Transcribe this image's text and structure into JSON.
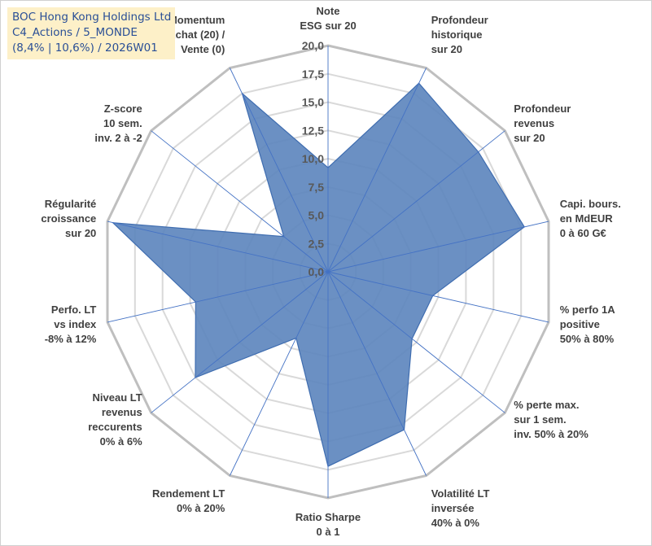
{
  "title": {
    "line1": "BOC Hong Kong Holdings Ltd",
    "line2": "C4_Actions / 5_MONDE",
    "line3": "(8,4% | 10,6%) / 2026W01"
  },
  "chart_data": {
    "type": "radar",
    "rmin": 0,
    "rmax": 20,
    "tick_step": 2.5,
    "ticks": [
      "0,0",
      "2,5",
      "5,0",
      "7,5",
      "10,0",
      "12,5",
      "15,0",
      "17,5",
      "20,0"
    ],
    "gridlines": true,
    "legend": "none",
    "series": [
      {
        "name": "BOC Hong Kong Holdings Ltd",
        "values": [
          9.2,
          18.5,
          17.0,
          17.8,
          9.5,
          9.5,
          15.5,
          17.2,
          6.5,
          15.0,
          12.0,
          19.5,
          5.0,
          17.5
        ],
        "fill": "#5b84bd",
        "stroke": "#3f6db0"
      }
    ],
    "axes": [
      {
        "lines": [
          "Note",
          "ESG sur 20"
        ]
      },
      {
        "lines": [
          "Profondeur",
          "historique",
          "sur 20"
        ]
      },
      {
        "lines": [
          "Profondeur",
          "revenus",
          "sur 20"
        ]
      },
      {
        "lines": [
          "Capi. bours.",
          "en MdEUR",
          "0 à 60 G€"
        ]
      },
      {
        "lines": [
          "% perfo 1A",
          "positive",
          "50% à 80%"
        ]
      },
      {
        "lines": [
          "% perte max.",
          "sur 1 sem.",
          "inv. 50% à 20%"
        ]
      },
      {
        "lines": [
          "Volatilité LT",
          "inversée",
          "40% à 0%"
        ]
      },
      {
        "lines": [
          "Ratio Sharpe",
          "0 à 1"
        ]
      },
      {
        "lines": [
          "Rendement LT",
          "0% à 20%"
        ]
      },
      {
        "lines": [
          "Niveau LT",
          "revenus",
          "reccurents",
          "0% à 6%"
        ]
      },
      {
        "lines": [
          "Perfo. LT",
          "vs index",
          "-8% à 12%"
        ]
      },
      {
        "lines": [
          "Régularité",
          "croissance",
          "sur 20"
        ]
      },
      {
        "lines": [
          "Z-score",
          "10 sem.",
          "inv. 2 à -2"
        ]
      },
      {
        "lines": [
          "Momentum",
          "Achat (20) /",
          "Vente (0)"
        ]
      }
    ]
  }
}
